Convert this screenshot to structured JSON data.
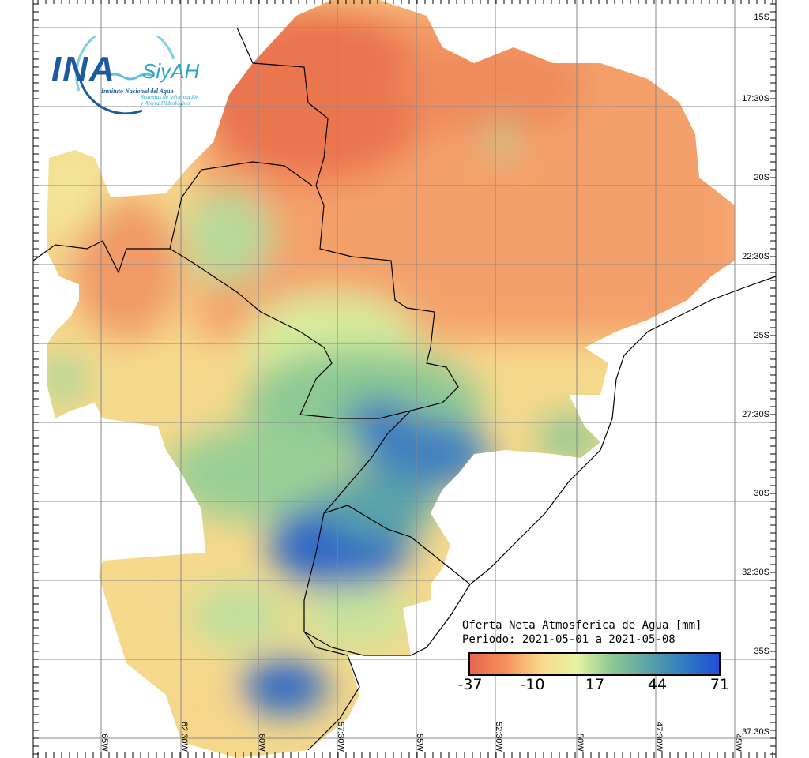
{
  "logo": {
    "ina": "INA",
    "siyah": "SiyAH",
    "institute": "Instituto Nacional del Agua",
    "system_line1": "Sistemas de información",
    "system_line2": "y Alerta Hidrológico"
  },
  "legend": {
    "title": "Oferta Neta Atmosferica de Agua [mm]",
    "period": "Periodo: 2021-05-01 a 2021-05-08",
    "ticks": [
      "-37",
      "-10",
      "17",
      "44",
      "71"
    ],
    "colors": [
      "#e8664a",
      "#f4915a",
      "#fad98a",
      "#e6f3a0",
      "#8cc993",
      "#5aa3a8",
      "#2f7ec0",
      "#1f4fd6"
    ]
  },
  "lat_labels": [
    "15S",
    "17:30S",
    "20S",
    "22:30S",
    "25S",
    "27:30S",
    "30S",
    "32:30S",
    "35S",
    "37:30S"
  ],
  "lon_labels": [
    "65W",
    "62:30W",
    "60W",
    "57:30W",
    "55W",
    "52:30W",
    "50W",
    "47:30W",
    "45W"
  ]
}
